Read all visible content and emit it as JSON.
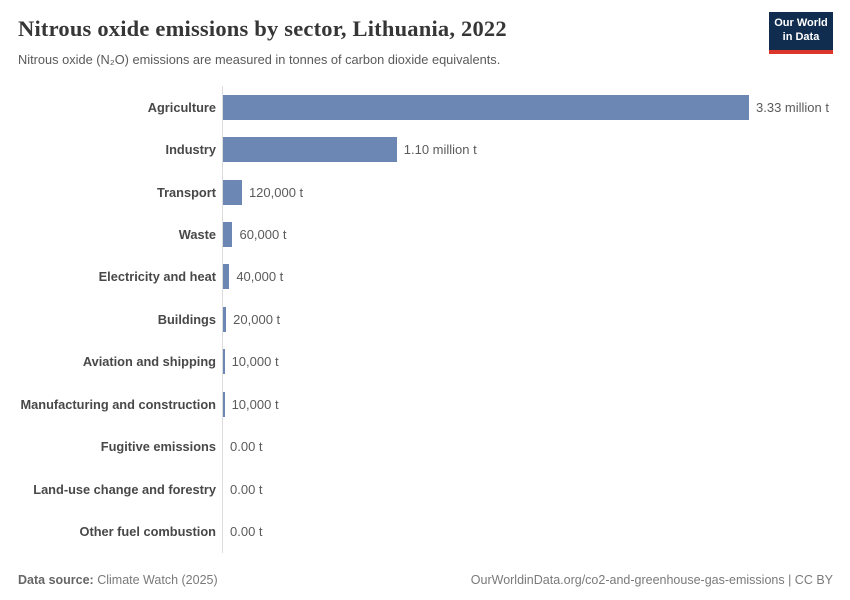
{
  "header": {
    "title": "Nitrous oxide emissions by sector, Lithuania, 2022",
    "subtitle": "Nitrous oxide (N₂O) emissions are measured in tonnes of carbon dioxide equivalents.",
    "logo_line1": "Our World",
    "logo_line2": "in Data"
  },
  "chart_data": {
    "type": "bar",
    "orientation": "horizontal",
    "title": "Nitrous oxide emissions by sector, Lithuania, 2022",
    "unit": "tonnes of carbon dioxide equivalents",
    "categories": [
      "Agriculture",
      "Industry",
      "Transport",
      "Waste",
      "Electricity and heat",
      "Buildings",
      "Aviation and shipping",
      "Manufacturing and construction",
      "Fugitive emissions",
      "Land-use change and forestry",
      "Other fuel combustion"
    ],
    "values": [
      3330000,
      1100000,
      120000,
      60000,
      40000,
      20000,
      10000,
      10000,
      0,
      0,
      0
    ],
    "value_labels": [
      "3.33 million t",
      "1.10 million t",
      "120,000 t",
      "60,000 t",
      "40,000 t",
      "20,000 t",
      "10,000 t",
      "10,000 t",
      "0.00 t",
      "0.00 t",
      "0.00 t"
    ],
    "xlim": [
      0,
      3330000
    ],
    "grid": false,
    "legend": "none",
    "bar_color": "#6d87b5",
    "axis_line_color": "#dcdcdc"
  },
  "footer": {
    "source_label": "Data source:",
    "source_value": "Climate Watch (2025)",
    "right_text": "OurWorldinData.org/co2-and-greenhouse-gas-emissions | CC BY"
  },
  "colors": {
    "title": "#363636",
    "subtitle": "#5a5a5a",
    "category_label": "#484848",
    "value_label": "#5b5b5b",
    "logo_bg": "#102d4f",
    "logo_stripe": "#dc352c"
  }
}
